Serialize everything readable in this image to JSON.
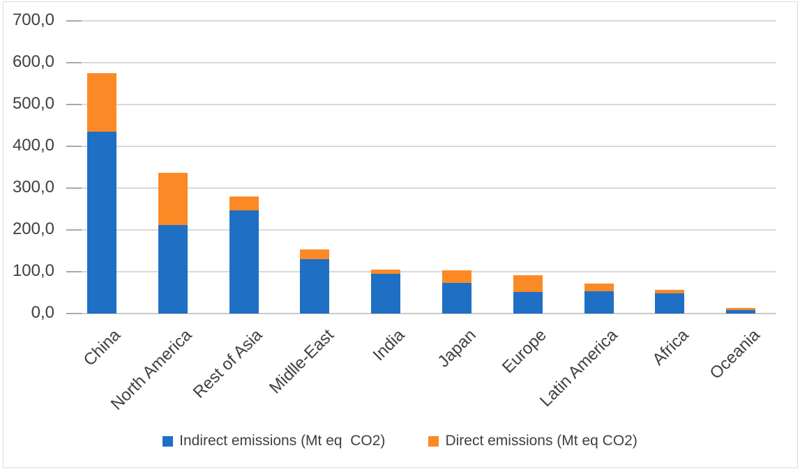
{
  "chart_data": {
    "type": "bar",
    "stacked": true,
    "title": "",
    "xlabel": "",
    "ylabel": "",
    "categories": [
      "China",
      "North America",
      "Rest of Asia",
      "Midlle-East",
      "India",
      "Japan",
      "Europe",
      "Latin America",
      "Africa",
      "Oceania"
    ],
    "series": [
      {
        "name": "Indirect emissions (Mt eq  CO2)",
        "color": "#1F6FC5",
        "values": [
          435,
          212,
          247,
          130,
          95,
          74,
          52,
          53,
          48,
          9
        ]
      },
      {
        "name": "Direct emissions (Mt eq CO2)",
        "color": "#FB8A26",
        "values": [
          140,
          125,
          33,
          23,
          10,
          30,
          40,
          18,
          9,
          5
        ]
      }
    ],
    "totals": [
      575,
      337,
      280,
      153,
      105,
      104,
      92,
      71,
      57,
      14
    ],
    "ylim": [
      0,
      700
    ],
    "y_tick_step": 100,
    "y_tick_labels": [
      "0,0",
      "100,0",
      "200,0",
      "300,0",
      "400,0",
      "500,0",
      "600,0",
      "700,0"
    ],
    "decimal_separator": ",",
    "grid": true,
    "legend_position": "bottom"
  },
  "colors": {
    "background": "#FFFFFF",
    "border": "#DCDCDC",
    "gridline": "#D9D9D9",
    "axis_line": "#C9C9C9",
    "tick": "#A9A9A9",
    "text": "#404040"
  }
}
